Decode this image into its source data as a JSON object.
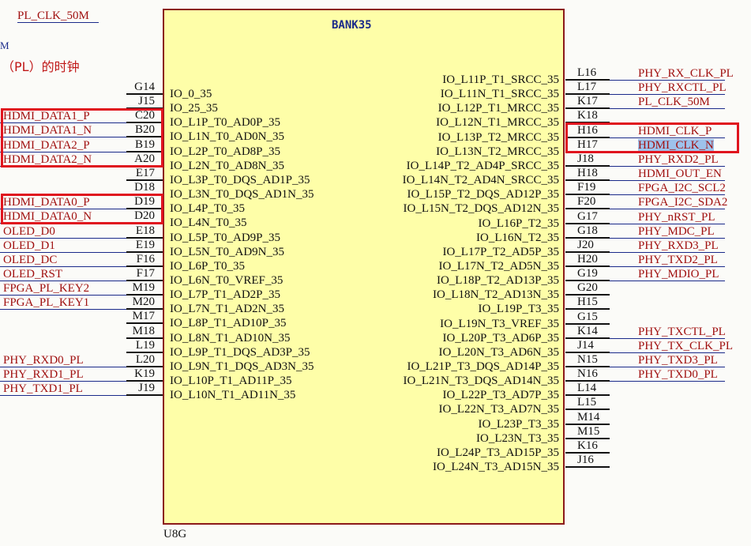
{
  "top_fragments": {
    "net": "PL_CLK_50M",
    "m": "M",
    "note": "（PL）的时钟"
  },
  "chip": {
    "title": "BANK35",
    "designator": "U8G"
  },
  "left_pins": [
    {
      "num": "G14",
      "name": "IO_0_35",
      "net": ""
    },
    {
      "num": "J15",
      "name": "IO_25_35",
      "net": ""
    },
    {
      "num": "C20",
      "name": "IO_L1P_T0_AD0P_35",
      "net": "HDMI_DATA1_P"
    },
    {
      "num": "B20",
      "name": "IO_L1N_T0_AD0N_35",
      "net": "HDMI_DATA1_N"
    },
    {
      "num": "B19",
      "name": "IO_L2P_T0_AD8P_35",
      "net": "HDMI_DATA2_P"
    },
    {
      "num": "A20",
      "name": "IO_L2N_T0_AD8N_35",
      "net": "HDMI_DATA2_N"
    },
    {
      "num": "E17",
      "name": "IO_L3P_T0_DQS_AD1P_35",
      "net": ""
    },
    {
      "num": "D18",
      "name": "IO_L3N_T0_DQS_AD1N_35",
      "net": ""
    },
    {
      "num": "D19",
      "name": "IO_L4P_T0_35",
      "net": "HDMI_DATA0_P"
    },
    {
      "num": "D20",
      "name": "IO_L4N_T0_35",
      "net": "HDMI_DATA0_N"
    },
    {
      "num": "E18",
      "name": "IO_L5P_T0_AD9P_35",
      "net": "OLED_D0"
    },
    {
      "num": "E19",
      "name": "IO_L5N_T0_AD9N_35",
      "net": "OLED_D1"
    },
    {
      "num": "F16",
      "name": "IO_L6P_T0_35",
      "net": "OLED_DC"
    },
    {
      "num": "F17",
      "name": "IO_L6N_T0_VREF_35",
      "net": "OLED_RST"
    },
    {
      "num": "M19",
      "name": "IO_L7P_T1_AD2P_35",
      "net": "FPGA_PL_KEY2"
    },
    {
      "num": "M20",
      "name": "IO_L7N_T1_AD2N_35",
      "net": "FPGA_PL_KEY1"
    },
    {
      "num": "M17",
      "name": "IO_L8P_T1_AD10P_35",
      "net": ""
    },
    {
      "num": "M18",
      "name": "IO_L8N_T1_AD10N_35",
      "net": ""
    },
    {
      "num": "L19",
      "name": "IO_L9P_T1_DQS_AD3P_35",
      "net": ""
    },
    {
      "num": "L20",
      "name": "IO_L9N_T1_DQS_AD3N_35",
      "net": "PHY_RXD0_PL"
    },
    {
      "num": "K19",
      "name": "IO_L10P_T1_AD11P_35",
      "net": "PHY_RXD1_PL"
    },
    {
      "num": "J19",
      "name": "IO_L10N_T1_AD11N_35",
      "net": "PHY_TXD1_PL"
    }
  ],
  "right_pins": [
    {
      "num": "L16",
      "name": "IO_L11P_T1_SRCC_35",
      "net": "PHY_RX_CLK_PL"
    },
    {
      "num": "L17",
      "name": "IO_L11N_T1_SRCC_35",
      "net": "PHY_RXCTL_PL"
    },
    {
      "num": "K17",
      "name": "IO_L12P_T1_MRCC_35",
      "net": "PL_CLK_50M"
    },
    {
      "num": "K18",
      "name": "IO_L12N_T1_MRCC_35",
      "net": ""
    },
    {
      "num": "H16",
      "name": "IO_L13P_T2_MRCC_35",
      "net": "HDMI_CLK_P"
    },
    {
      "num": "H17",
      "name": "IO_L13N_T2_MRCC_35",
      "net": "HDMI_CLK_N"
    },
    {
      "num": "J18",
      "name": "IO_L14P_T2_AD4P_SRCC_35",
      "net": "PHY_RXD2_PL"
    },
    {
      "num": "H18",
      "name": "IO_L14N_T2_AD4N_SRCC_35",
      "net": "HDMI_OUT_EN"
    },
    {
      "num": "F19",
      "name": "IO_L15P_T2_DQS_AD12P_35",
      "net": "FPGA_I2C_SCL2"
    },
    {
      "num": "F20",
      "name": "IO_L15N_T2_DQS_AD12N_35",
      "net": "FPGA_I2C_SDA2"
    },
    {
      "num": "G17",
      "name": "IO_L16P_T2_35",
      "net": "PHY_nRST_PL"
    },
    {
      "num": "G18",
      "name": "IO_L16N_T2_35",
      "net": "PHY_MDC_PL"
    },
    {
      "num": "J20",
      "name": "IO_L17P_T2_AD5P_35",
      "net": "PHY_RXD3_PL"
    },
    {
      "num": "H20",
      "name": "IO_L17N_T2_AD5N_35",
      "net": "PHY_TXD2_PL"
    },
    {
      "num": "G19",
      "name": "IO_L18P_T2_AD13P_35",
      "net": "PHY_MDIO_PL"
    },
    {
      "num": "G20",
      "name": "IO_L18N_T2_AD13N_35",
      "net": ""
    },
    {
      "num": "H15",
      "name": "IO_L19P_T3_35",
      "net": ""
    },
    {
      "num": "G15",
      "name": "IO_L19N_T3_VREF_35",
      "net": ""
    },
    {
      "num": "K14",
      "name": "IO_L20P_T3_AD6P_35",
      "net": "PHY_TXCTL_PL"
    },
    {
      "num": "J14",
      "name": "IO_L20N_T3_AD6N_35",
      "net": "PHY_TX_CLK_PL"
    },
    {
      "num": "N15",
      "name": "IO_L21P_T3_DQS_AD14P_35",
      "net": "PHY_TXD3_PL"
    },
    {
      "num": "N16",
      "name": "IO_L21N_T3_DQS_AD14N_35",
      "net": "PHY_TXD0_PL"
    },
    {
      "num": "L14",
      "name": "IO_L22P_T3_AD7P_35",
      "net": ""
    },
    {
      "num": "L15",
      "name": "IO_L22N_T3_AD7N_35",
      "net": ""
    },
    {
      "num": "M14",
      "name": "IO_L23P_T3_35",
      "net": ""
    },
    {
      "num": "M15",
      "name": "IO_L23N_T3_35",
      "net": ""
    },
    {
      "num": "K16",
      "name": "IO_L24P_T3_AD15P_35",
      "net": ""
    },
    {
      "num": "J16",
      "name": "IO_L24N_T3_AD15N_35",
      "net": ""
    }
  ],
  "selected_net": "HDMI_CLK_N",
  "colors": {
    "body": "#fefea8",
    "border": "#8b1a1a",
    "net": "#a01010",
    "netline": "#1a2a8a",
    "highlight": "#e0141e",
    "selection": "#9ec2ec"
  }
}
